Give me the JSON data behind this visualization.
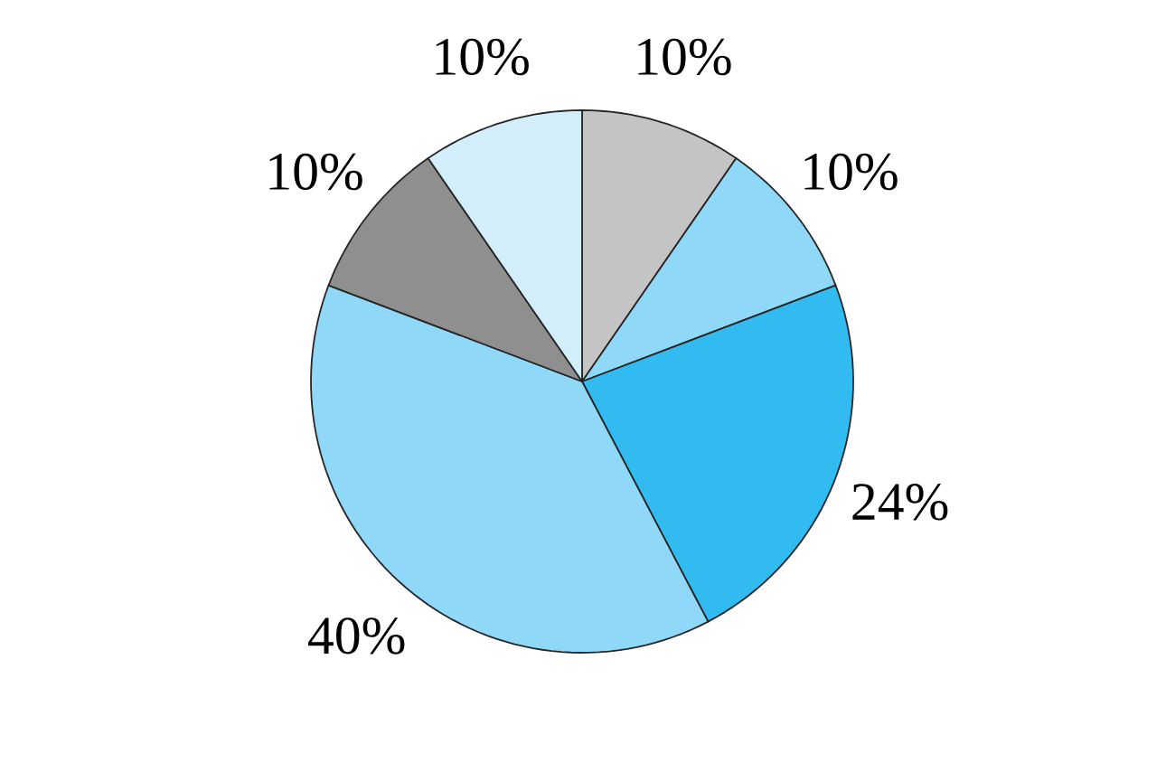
{
  "chart_data": {
    "type": "pie",
    "categories": [
      null,
      null,
      null,
      null,
      null,
      null
    ],
    "values": [
      10,
      10,
      24,
      40,
      10,
      10
    ],
    "value_labels": [
      "10%",
      "10%",
      "24%",
      "40%",
      "10%",
      "10%"
    ],
    "colors": [
      "#c4c4c4",
      "#8fd8f7",
      "#31bbf0",
      "#8fd8f7",
      "#908f90",
      "#d2eefa"
    ]
  }
}
